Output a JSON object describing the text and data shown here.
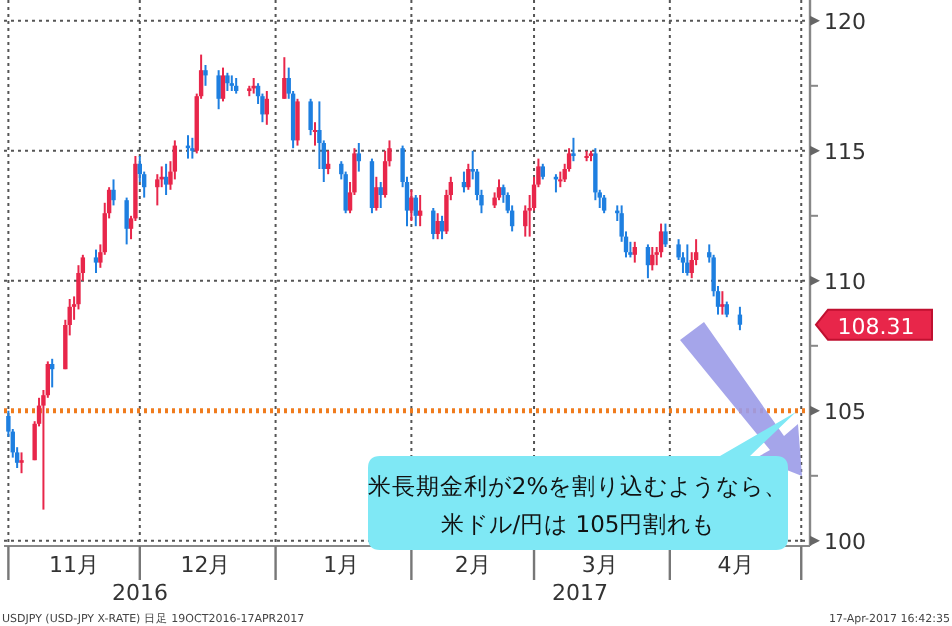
{
  "chart_data": {
    "type": "candlestick",
    "colors": [
      "#1e7fe0",
      "#1e7fe0",
      "#1e7fe0",
      "#e8264a",
      "#e8264a",
      "#e8264a",
      "#e8264a",
      "#e8264a",
      "#1e7fe0",
      "#e8264a",
      "#e8264a",
      "#e8264a",
      "#e8264a",
      "#e8264a",
      "#1e7fe0",
      "#e8264a",
      "#e8264a",
      "#e8264a",
      "#1e7fe0",
      "#1e7fe0",
      "#e8264a",
      "#e8264a",
      "#1e7fe0",
      "#1e7fe0",
      "#e8264a",
      "#e8264a",
      "#1e7fe0",
      "#e8264a",
      "#e8264a",
      "#1e7fe0",
      "#1e7fe0",
      "#e8264a",
      "#e8264a",
      "#1e7fe0",
      "#1e7fe0",
      "#e8264a",
      "#1e7fe0",
      "#1e7fe0",
      "#1e7fe0",
      "#e8264a",
      "#e8264a",
      "#1e7fe0",
      "#1e7fe0",
      "#e8264a",
      "#e8264a",
      "#1e7fe0",
      "#1e7fe0",
      "#e8264a",
      "#1e7fe0",
      "#e8264a",
      "#1e7fe0",
      "#1e7fe0",
      "#e8264a",
      "#1e7fe0",
      "#1e7fe0",
      "#e8264a",
      "#e8264a",
      "#1e7fe0",
      "#1e7fe0",
      "#e8264a",
      "#1e7fe0",
      "#e8264a",
      "#e8264a",
      "#1e7fe0",
      "#1e7fe0",
      "#e8264a",
      "#1e7fe0",
      "#e8264a",
      "#1e7fe0",
      "#e8264a",
      "#1e7fe0",
      "#e8264a",
      "#e8264a",
      "#1e7fe0",
      "#e8264a",
      "#1e7fe0",
      "#1e7fe0",
      "#1e7fe0",
      "#e8264a",
      "#e8264a",
      "#1e7fe0",
      "#1e7fe0",
      "#1e7fe0",
      "#e8264a",
      "#e8264a",
      "#e8264a",
      "#e8264a",
      "#1e7fe0",
      "#1e7fe0",
      "#e8264a",
      "#e8264a",
      "#e8264a",
      "#1e7fe0",
      "#e8264a",
      "#e8264a",
      "#1e7fe0",
      "#1e7fe0",
      "#1e7fe0",
      "#1e7fe0",
      "#1e7fe0",
      "#1e7fe0",
      "#1e7fe0",
      "#e8264a",
      "#1e7fe0",
      "#e8264a",
      "#e8264a",
      "#e8264a",
      "#1e7fe0",
      "#1e7fe0",
      "#1e7fe0",
      "#1e7fe0",
      "#e8264a",
      "#e8264a",
      "#1e7fe0",
      "#1e7fe0",
      "#1e7fe0",
      "#e8264a",
      "#1e7fe0",
      "#1e7fe0"
    ],
    "x": [
      "2016-11-01",
      "2016-11-02",
      "2016-11-03",
      "2016-11-04",
      "2016-11-07",
      "2016-11-08",
      "2016-11-09",
      "2016-11-10",
      "2016-11-11",
      "2016-11-14",
      "2016-11-15",
      "2016-11-16",
      "2016-11-17",
      "2016-11-18",
      "2016-11-21",
      "2016-11-22",
      "2016-11-23",
      "2016-11-24",
      "2016-11-25",
      "2016-11-28",
      "2016-11-29",
      "2016-11-30",
      "2016-12-01",
      "2016-12-02",
      "2016-12-05",
      "2016-12-06",
      "2016-12-07",
      "2016-12-08",
      "2016-12-09",
      "2016-12-12",
      "2016-12-13",
      "2016-12-14",
      "2016-12-15",
      "2016-12-16",
      "2016-12-19",
      "2016-12-20",
      "2016-12-21",
      "2016-12-22",
      "2016-12-23",
      "2016-12-26",
      "2016-12-27",
      "2016-12-28",
      "2016-12-29",
      "2016-12-30",
      "2017-01-03",
      "2017-01-04",
      "2017-01-05",
      "2017-01-06",
      "2017-01-09",
      "2017-01-10",
      "2017-01-11",
      "2017-01-12",
      "2017-01-13",
      "2017-01-16",
      "2017-01-17",
      "2017-01-18",
      "2017-01-19",
      "2017-01-20",
      "2017-01-23",
      "2017-01-24",
      "2017-01-25",
      "2017-01-26",
      "2017-01-27",
      "2017-01-30",
      "2017-01-31",
      "2017-02-01",
      "2017-02-02",
      "2017-02-03",
      "2017-02-06",
      "2017-02-07",
      "2017-02-08",
      "2017-02-09",
      "2017-02-10",
      "2017-02-13",
      "2017-02-14",
      "2017-02-15",
      "2017-02-16",
      "2017-02-17",
      "2017-02-20",
      "2017-02-21",
      "2017-02-22",
      "2017-02-23",
      "2017-02-24",
      "2017-02-27",
      "2017-02-28",
      "2017-03-01",
      "2017-03-02",
      "2017-03-03",
      "2017-03-06",
      "2017-03-07",
      "2017-03-08",
      "2017-03-09",
      "2017-03-10",
      "2017-03-13",
      "2017-03-14",
      "2017-03-15",
      "2017-03-16",
      "2017-03-17",
      "2017-03-20",
      "2017-03-21",
      "2017-03-22",
      "2017-03-23",
      "2017-03-24",
      "2017-03-27",
      "2017-03-28",
      "2017-03-29",
      "2017-03-30",
      "2017-03-31",
      "2017-04-03",
      "2017-04-04",
      "2017-04-05",
      "2017-04-06",
      "2017-04-07",
      "2017-04-10",
      "2017-04-11",
      "2017-04-12",
      "2017-04-13",
      "2017-04-14",
      "2017-04-17"
    ],
    "ohlc": [
      [
        104.8,
        105.0,
        104.0,
        104.2
      ],
      [
        104.2,
        104.3,
        103.2,
        103.4
      ],
      [
        103.4,
        103.6,
        102.8,
        103.0
      ],
      [
        103.0,
        103.4,
        102.6,
        103.1
      ],
      [
        103.1,
        104.6,
        103.1,
        104.5
      ],
      [
        104.5,
        105.5,
        104.4,
        105.2
      ],
      [
        105.2,
        105.8,
        101.2,
        105.6
      ],
      [
        105.6,
        106.9,
        105.5,
        106.8
      ],
      [
        106.8,
        107.0,
        105.9,
        106.6
      ],
      [
        106.6,
        108.5,
        106.6,
        108.3
      ],
      [
        108.3,
        109.3,
        107.9,
        109.0
      ],
      [
        109.0,
        109.4,
        108.5,
        109.1
      ],
      [
        109.1,
        110.6,
        108.9,
        110.3
      ],
      [
        110.3,
        111.0,
        110.0,
        110.9
      ],
      [
        110.9,
        111.2,
        110.3,
        110.7
      ],
      [
        110.7,
        111.4,
        110.5,
        111.1
      ],
      [
        111.1,
        113.0,
        111.0,
        112.6
      ],
      [
        112.6,
        113.6,
        112.4,
        113.5
      ],
      [
        113.5,
        113.9,
        112.9,
        113.1
      ],
      [
        113.1,
        113.2,
        111.4,
        112.0
      ],
      [
        112.0,
        112.5,
        111.6,
        112.4
      ],
      [
        112.4,
        114.8,
        112.3,
        114.5
      ],
      [
        114.5,
        114.8,
        113.8,
        114.1
      ],
      [
        114.1,
        114.2,
        113.2,
        113.6
      ],
      [
        113.6,
        114.1,
        112.9,
        113.9
      ],
      [
        113.9,
        114.4,
        113.6,
        114.0
      ],
      [
        114.0,
        114.5,
        113.3,
        113.7
      ],
      [
        113.7,
        114.6,
        113.5,
        114.2
      ],
      [
        114.2,
        115.4,
        113.9,
        115.2
      ],
      [
        115.2,
        115.6,
        114.7,
        115.1
      ],
      [
        115.1,
        115.5,
        114.7,
        115.0
      ],
      [
        115.0,
        117.2,
        114.9,
        117.1
      ],
      [
        117.1,
        118.7,
        117.0,
        118.1
      ],
      [
        118.1,
        118.3,
        117.5,
        117.9
      ],
      [
        117.9,
        118.1,
        116.6,
        117.0
      ],
      [
        117.0,
        118.2,
        116.9,
        117.9
      ],
      [
        117.9,
        118.0,
        117.3,
        117.6
      ],
      [
        117.6,
        117.9,
        117.3,
        117.5
      ],
      [
        117.5,
        117.8,
        117.2,
        117.3
      ],
      [
        117.3,
        117.5,
        117.1,
        117.4
      ],
      [
        117.4,
        117.8,
        117.2,
        117.5
      ],
      [
        117.5,
        117.6,
        116.8,
        117.1
      ],
      [
        117.1,
        117.2,
        116.1,
        116.4
      ],
      [
        116.4,
        117.3,
        116.0,
        117.0
      ],
      [
        117.0,
        118.6,
        117.0,
        117.8
      ],
      [
        117.8,
        118.2,
        117.0,
        117.2
      ],
      [
        117.2,
        117.3,
        115.1,
        115.4
      ],
      [
        115.4,
        117.0,
        115.2,
        116.9
      ],
      [
        116.9,
        117.0,
        115.6,
        115.8
      ],
      [
        115.8,
        116.1,
        115.2,
        115.8
      ],
      [
        115.8,
        116.9,
        114.3,
        115.3
      ],
      [
        115.3,
        115.4,
        113.8,
        114.3
      ],
      [
        114.3,
        115.0,
        114.1,
        114.5
      ],
      [
        114.5,
        114.6,
        113.9,
        114.1
      ],
      [
        114.1,
        114.2,
        112.6,
        112.7
      ],
      [
        112.7,
        113.8,
        112.6,
        113.4
      ],
      [
        113.4,
        115.1,
        113.3,
        114.9
      ],
      [
        114.9,
        115.3,
        114.2,
        114.6
      ],
      [
        114.6,
        114.7,
        112.6,
        112.8
      ],
      [
        112.8,
        114.0,
        112.7,
        113.6
      ],
      [
        113.6,
        113.8,
        112.8,
        113.3
      ],
      [
        113.3,
        115.0,
        113.2,
        114.6
      ],
      [
        114.6,
        115.4,
        114.4,
        115.1
      ],
      [
        115.1,
        115.2,
        113.6,
        113.8
      ],
      [
        113.8,
        114.0,
        112.1,
        112.7
      ],
      [
        112.7,
        113.5,
        112.3,
        113.2
      ],
      [
        113.2,
        113.3,
        112.1,
        112.5
      ],
      [
        112.5,
        113.3,
        112.1,
        112.7
      ],
      [
        112.7,
        112.8,
        111.6,
        111.8
      ],
      [
        111.8,
        112.6,
        111.6,
        112.3
      ],
      [
        112.3,
        112.5,
        111.6,
        111.9
      ],
      [
        111.9,
        113.5,
        111.8,
        113.3
      ],
      [
        113.3,
        114.0,
        113.1,
        113.8
      ],
      [
        113.8,
        114.2,
        113.4,
        113.6
      ],
      [
        113.6,
        114.5,
        113.5,
        114.3
      ],
      [
        114.3,
        115.0,
        113.9,
        114.2
      ],
      [
        114.2,
        114.3,
        113.1,
        113.3
      ],
      [
        113.3,
        113.5,
        112.6,
        112.9
      ],
      [
        112.9,
        113.4,
        112.8,
        113.2
      ],
      [
        113.2,
        113.9,
        113.1,
        113.6
      ],
      [
        113.6,
        113.7,
        113.0,
        113.3
      ],
      [
        113.3,
        113.4,
        112.6,
        112.7
      ],
      [
        112.7,
        112.9,
        111.9,
        112.1
      ],
      [
        112.1,
        112.9,
        111.7,
        112.7
      ],
      [
        112.7,
        113.3,
        111.7,
        112.8
      ],
      [
        112.8,
        114.0,
        112.7,
        113.7
      ],
      [
        113.7,
        114.7,
        113.6,
        114.4
      ],
      [
        114.4,
        114.5,
        113.9,
        114.0
      ],
      [
        114.0,
        114.1,
        113.4,
        113.9
      ],
      [
        113.9,
        114.2,
        113.6,
        113.9
      ],
      [
        113.9,
        114.5,
        113.8,
        114.3
      ],
      [
        114.3,
        115.1,
        114.2,
        114.9
      ],
      [
        114.9,
        115.5,
        114.6,
        114.8
      ],
      [
        114.8,
        115.0,
        114.6,
        114.8
      ],
      [
        114.8,
        115.0,
        114.6,
        114.9
      ],
      [
        114.9,
        115.1,
        113.1,
        113.4
      ],
      [
        113.4,
        113.5,
        112.8,
        113.2
      ],
      [
        113.2,
        113.3,
        112.6,
        112.7
      ],
      [
        112.7,
        112.9,
        112.3,
        112.6
      ],
      [
        112.6,
        112.9,
        111.5,
        111.7
      ],
      [
        111.7,
        111.9,
        110.9,
        111.1
      ],
      [
        111.1,
        111.5,
        110.9,
        111.0
      ],
      [
        111.0,
        111.5,
        110.7,
        111.3
      ],
      [
        111.3,
        111.4,
        110.1,
        110.6
      ],
      [
        110.6,
        111.3,
        110.4,
        111.0
      ],
      [
        111.0,
        111.3,
        110.6,
        111.1
      ],
      [
        111.1,
        112.2,
        110.9,
        111.9
      ],
      [
        111.9,
        112.2,
        111.3,
        111.4
      ],
      [
        111.4,
        111.6,
        110.8,
        110.9
      ],
      [
        110.9,
        111.1,
        110.3,
        110.7
      ],
      [
        110.7,
        111.4,
        110.2,
        110.3
      ],
      [
        110.3,
        111.1,
        110.1,
        110.8
      ],
      [
        110.8,
        111.6,
        110.6,
        111.1
      ],
      [
        111.1,
        111.4,
        110.7,
        110.9
      ],
      [
        110.9,
        111.0,
        109.4,
        109.6
      ],
      [
        109.6,
        109.8,
        108.7,
        109.0
      ],
      [
        109.0,
        109.6,
        108.7,
        109.1
      ],
      [
        109.1,
        109.2,
        108.6,
        108.7
      ],
      [
        108.7,
        109.0,
        108.1,
        108.31
      ]
    ],
    "xlim": [
      "2016-10-31",
      "2017-05-03"
    ],
    "xticks": [
      {
        "value": "2016-11-01",
        "label": null
      },
      {
        "value": "2016-11-16",
        "label": "11月"
      },
      {
        "value": "2016-12-01",
        "label": null
      },
      {
        "value": "2016-12-16",
        "label": "12月"
      },
      {
        "value": "2017-01-01",
        "label": null
      },
      {
        "value": "2017-01-16",
        "label": "1月"
      },
      {
        "value": "2017-02-01",
        "label": null
      },
      {
        "value": "2017-02-15",
        "label": "2月"
      },
      {
        "value": "2017-03-01",
        "label": null
      },
      {
        "value": "2017-03-16",
        "label": "3月"
      },
      {
        "value": "2017-04-01",
        "label": null
      },
      {
        "value": "2017-04-16",
        "label": "4月"
      },
      {
        "value": "2017-05-01",
        "label": null
      }
    ],
    "ylim": [
      99.8,
      120.8
    ],
    "yticks": [
      100,
      {
        "value": 102.5,
        "label": null
      },
      105,
      {
        "value": 107.5,
        "label": null
      },
      110,
      {
        "value": 112.5,
        "label": null
      },
      115,
      {
        "value": 117.5,
        "label": null
      },
      120
    ],
    "grid": true,
    "ref_lines": [
      {
        "axis": "y",
        "value": 105,
        "color": "#f07c1e",
        "line_style": "dotted"
      }
    ],
    "annotations": [
      "108.31",
      "米長期金利が2%を割り込むようなら、",
      "米ドル/円は 105円割れも",
      "2016",
      "2017",
      "USDJPY (USD-JPY X-RATE) 日足 19OCT2016-17APR2017",
      "17-Apr-2017 16:42:35"
    ]
  }
}
